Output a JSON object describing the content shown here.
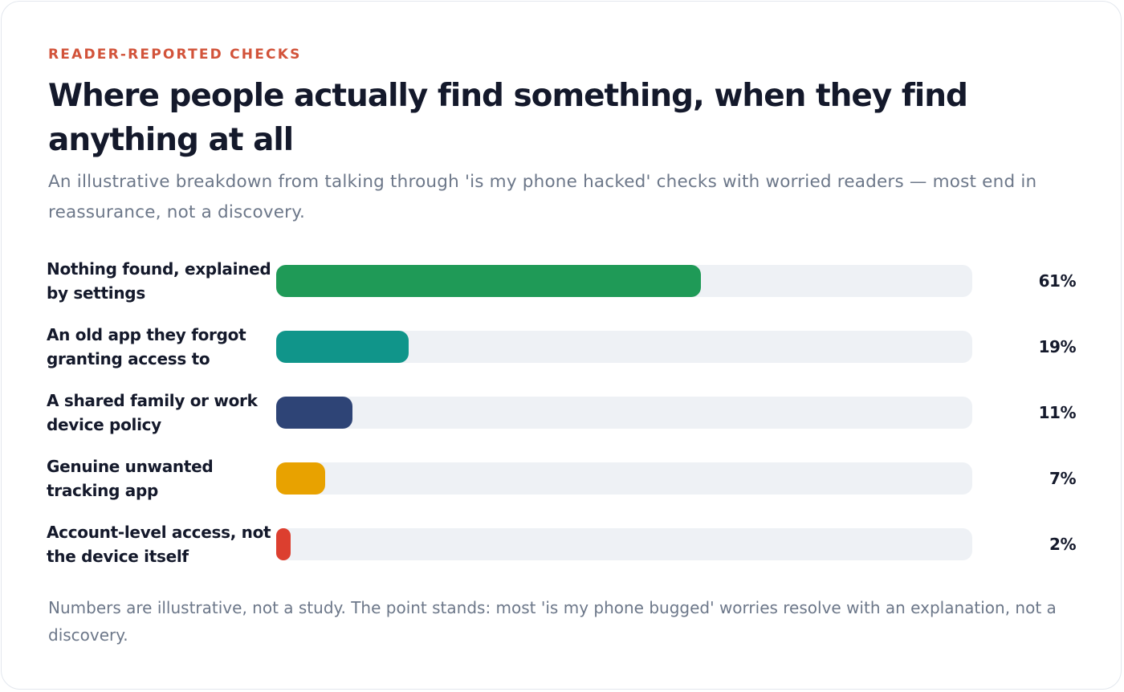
{
  "chart_data": {
    "type": "bar",
    "orientation": "horizontal",
    "eyebrow": "READER-REPORTED CHECKS",
    "title": "Where people actually find something, when they find anything at all",
    "subtitle": "An illustrative breakdown from talking through 'is my phone hacked' checks with worried readers — most end in reassurance, not a discovery.",
    "categories": [
      "Nothing found, explained by settings",
      "An old app they forgot granting access to",
      "A shared family or work device policy",
      "Genuine unwanted tracking app",
      "Account-level access, not the device itself"
    ],
    "values": [
      61,
      19,
      11,
      7,
      2
    ],
    "value_labels": [
      "61%",
      "19%",
      "11%",
      "7%",
      "2%"
    ],
    "colors": [
      "#1f9a57",
      "#10958a",
      "#2e4476",
      "#e8a200",
      "#dc3f2f"
    ],
    "xlim": [
      0,
      100
    ],
    "track_color": "#eef1f5",
    "grid": false,
    "legend": "none",
    "footnote": "Numbers are illustrative, not a study. The point stands: most 'is my phone bugged' worries resolve with an explanation, not a discovery."
  }
}
